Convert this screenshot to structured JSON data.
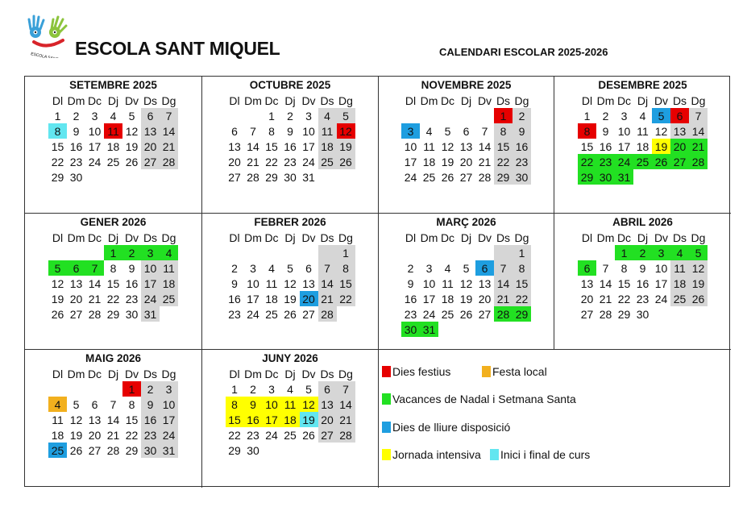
{
  "header": {
    "school_name": "ESCOLA SANT MIQUEL",
    "logo_text": "ESCOLA SANT MIQUEL",
    "title": "CALENDARI ESCOLAR 2025-2026"
  },
  "weekdays": [
    "Dl",
    "Dm",
    "Dc",
    "Dj",
    "Dv",
    "Ds",
    "Dg"
  ],
  "colors": {
    "festiu": "#e60000",
    "local": "#f2b01e",
    "vacances": "#22e022",
    "lliure": "#1e9ee0",
    "intensiva": "#ffff00",
    "inici": "#62e6f0",
    "weekend": "#d6d6d6"
  },
  "months": [
    {
      "name": "SETEMBRE 2025",
      "first_weekday": "Dl",
      "days": 30,
      "marks": {
        "8": "inici",
        "11": "festiu"
      }
    },
    {
      "name": "OCTUBRE 2025",
      "first_weekday": "Dc",
      "days": 31,
      "marks": {
        "12": "festiu"
      }
    },
    {
      "name": "NOVEMBRE 2025",
      "first_weekday": "Ds",
      "days": 30,
      "marks": {
        "1": "festiu",
        "3": "lliure"
      }
    },
    {
      "name": "DESEMBRE 2025",
      "first_weekday": "Dl",
      "days": 31,
      "marks": {
        "5": "lliure",
        "6": "festiu",
        "8": "festiu",
        "19": "intensiva",
        "20": "vacances",
        "21": "vacances",
        "22": "vacances",
        "23": "vacances",
        "24": "vacances",
        "25": "vacances",
        "26": "vacances",
        "27": "vacances",
        "28": "vacances",
        "29": "vacances",
        "30": "vacances",
        "31": "vacances"
      }
    },
    {
      "name": "GENER 2026",
      "first_weekday": "Dj",
      "days": 31,
      "marks": {
        "1": "vacances",
        "2": "vacances",
        "3": "vacances",
        "4": "vacances",
        "5": "vacances",
        "6": "vacances",
        "7": "vacances"
      }
    },
    {
      "name": "FEBRER 2026",
      "first_weekday": "Dg",
      "days": 28,
      "marks": {
        "20": "lliure"
      }
    },
    {
      "name": "MARÇ 2026",
      "first_weekday": "Dg",
      "days": 31,
      "marks": {
        "6": "lliure",
        "28": "vacances",
        "29": "vacances",
        "30": "vacances",
        "31": "vacances"
      }
    },
    {
      "name": "ABRIL 2026",
      "first_weekday": "Dc",
      "days": 30,
      "marks": {
        "1": "vacances",
        "2": "vacances",
        "3": "vacances",
        "4": "vacances",
        "5": "vacances",
        "6": "vacances"
      }
    },
    {
      "name": "MAIG 2026",
      "first_weekday": "Dv",
      "days": 31,
      "marks": {
        "1": "festiu",
        "4": "local",
        "25": "lliure"
      }
    },
    {
      "name": "JUNY 2026",
      "first_weekday": "Dl",
      "days": 30,
      "marks": {
        "8": "intensiva",
        "9": "intensiva",
        "10": "intensiva",
        "11": "intensiva",
        "12": "intensiva",
        "15": "intensiva",
        "16": "intensiva",
        "17": "intensiva",
        "18": "intensiva",
        "19": "inici"
      }
    }
  ],
  "legend": [
    {
      "key": "festiu",
      "label": "Dies festius"
    },
    {
      "key": "local",
      "label": "Festa local"
    },
    {
      "key": "vacances",
      "label": "Vacances de Nadal i Setmana Santa"
    },
    {
      "key": "lliure",
      "label": "Dies de lliure disposició"
    },
    {
      "key": "intensiva",
      "label": "Jornada intensiva"
    },
    {
      "key": "inici",
      "label": "Inici i final de curs"
    }
  ]
}
